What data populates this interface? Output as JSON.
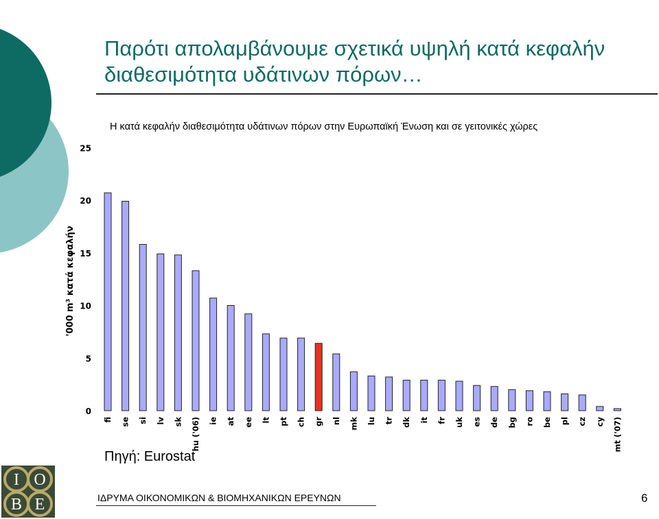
{
  "slide": {
    "title_line1": "Παρότι απολαμβάνουμε σχετικά υψηλή κατά κεφαλήν",
    "title_line2": "διαθεσιμότητα υδάτινων πόρων…",
    "source": "Πηγή: Eurostat",
    "footer": "ΙΔΡΥΜΑ ΟΙΚΟΝΟΜΙΚΩΝ & ΒΙΟΜΗΧΑΝΙΚΩΝ ΕΡΕΥΝΩΝ",
    "page_number": "6",
    "logo_letters": [
      "Ι",
      "Ο",
      "Β",
      "Ε"
    ],
    "colors": {
      "title": "#0e6b63",
      "deco_dark": "#0e6b63",
      "deco_light": "#8cc5c5",
      "bar": "#aaaaff",
      "bar_highlight": "#e83222",
      "logo_bg": "#3b4a35",
      "logo_ring": "#b8aa6a"
    }
  },
  "chart_data": {
    "type": "bar",
    "title": "Η κατά κεφαλήν διαθεσιμότητα υδάτινων πόρων στην Ευρωπαϊκή Ένωση και σε γειτονικές χώρες",
    "ylabel": "'000 m³ κατά κεφαλήν",
    "xlabel": "",
    "ylim": [
      0,
      25
    ],
    "yticks": [
      "0",
      "5",
      "10",
      "15",
      "20",
      "25"
    ],
    "grid": false,
    "categories": [
      "fi",
      "se",
      "si",
      "lv",
      "sk",
      "hu ('06)",
      "ie",
      "at",
      "ee",
      "lt",
      "pt",
      "ch",
      "gr",
      "nl",
      "mk",
      "lu",
      "tr",
      "dk",
      "it",
      "fr",
      "uk",
      "es",
      "de",
      "bg",
      "ro",
      "be",
      "pl",
      "cz",
      "cy",
      "mt ('07)"
    ],
    "values": [
      20.7,
      19.9,
      15.8,
      14.9,
      14.8,
      13.3,
      10.7,
      10.0,
      9.2,
      7.3,
      6.9,
      6.9,
      6.4,
      5.4,
      3.7,
      3.3,
      3.2,
      2.9,
      2.9,
      2.9,
      2.8,
      2.4,
      2.3,
      2.0,
      1.9,
      1.8,
      1.6,
      1.5,
      0.4,
      0.2
    ],
    "highlight": "gr"
  }
}
